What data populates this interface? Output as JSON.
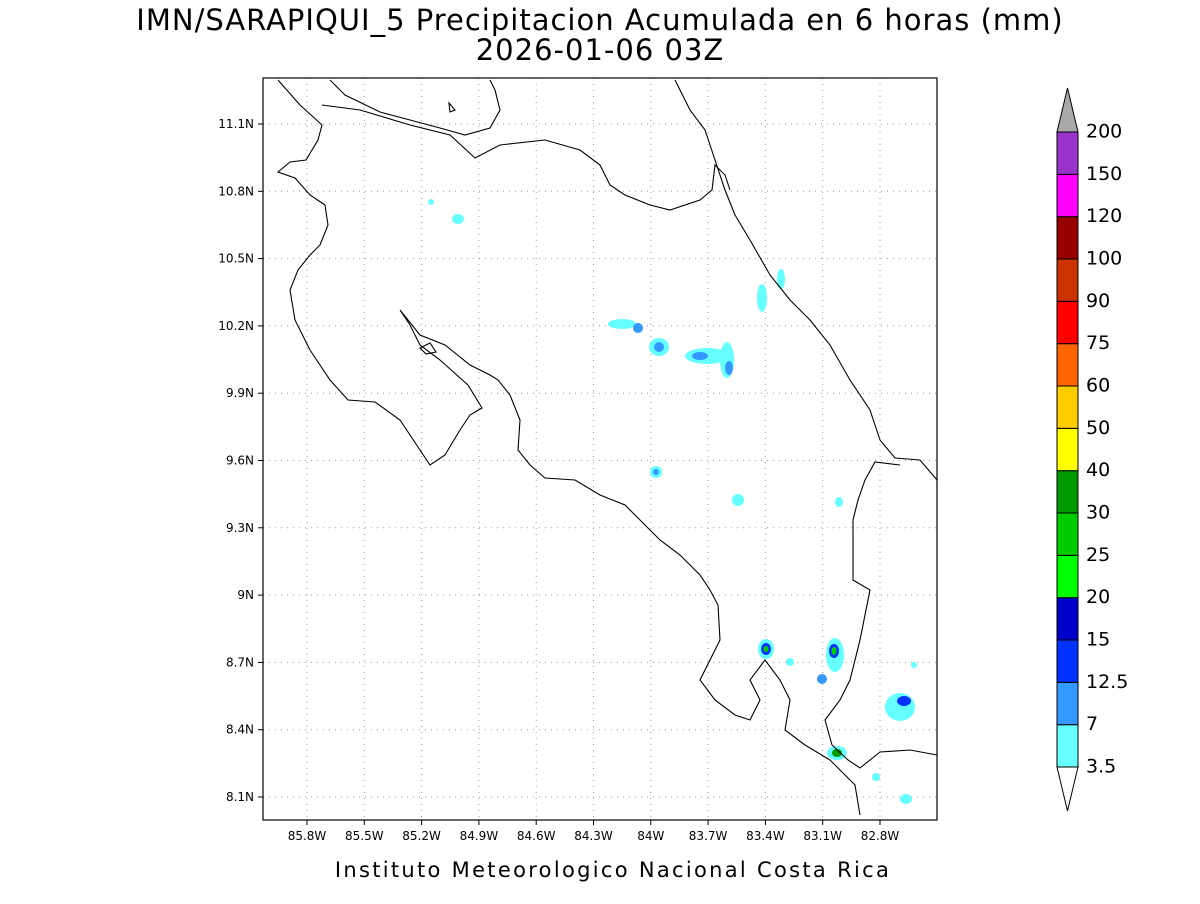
{
  "title": "IMN/SARAPIQUI_5 Precipitacion Acumulada en 6 horas (mm)",
  "subtitle": "2026-01-06 03Z",
  "lon_ticks": [
    "85.8W",
    "85.5W",
    "85.2W",
    "84.9W",
    "84.6W",
    "84.3W",
    "84W",
    "83.7W",
    "83.4W",
    "83.1W",
    "82.8W"
  ],
  "lat_ticks": [
    "8.1N",
    "8.4N",
    "8.7N",
    "9N",
    "9.3N",
    "9.6N",
    "9.9N",
    "10.2N",
    "10.5N",
    "10.8N",
    "11.1N"
  ],
  "colorbar": {
    "levels": [
      3.5,
      7,
      12.5,
      15,
      20,
      25,
      30,
      40,
      50,
      60,
      75,
      90,
      100,
      120,
      150,
      200
    ],
    "colors": [
      "#66ffff",
      "#3399ff",
      "#0033ff",
      "#0000cc",
      "#00ff00",
      "#00cc00",
      "#009900",
      "#ffff00",
      "#ffcc00",
      "#ff6600",
      "#ff0000",
      "#cc3300",
      "#990000",
      "#ff00ff",
      "#9933cc"
    ],
    "over_color": "#a9a9a9",
    "under_color": "#ffffff"
  },
  "footer": "Instituto Meteorologico Nacional Costa Rica"
}
